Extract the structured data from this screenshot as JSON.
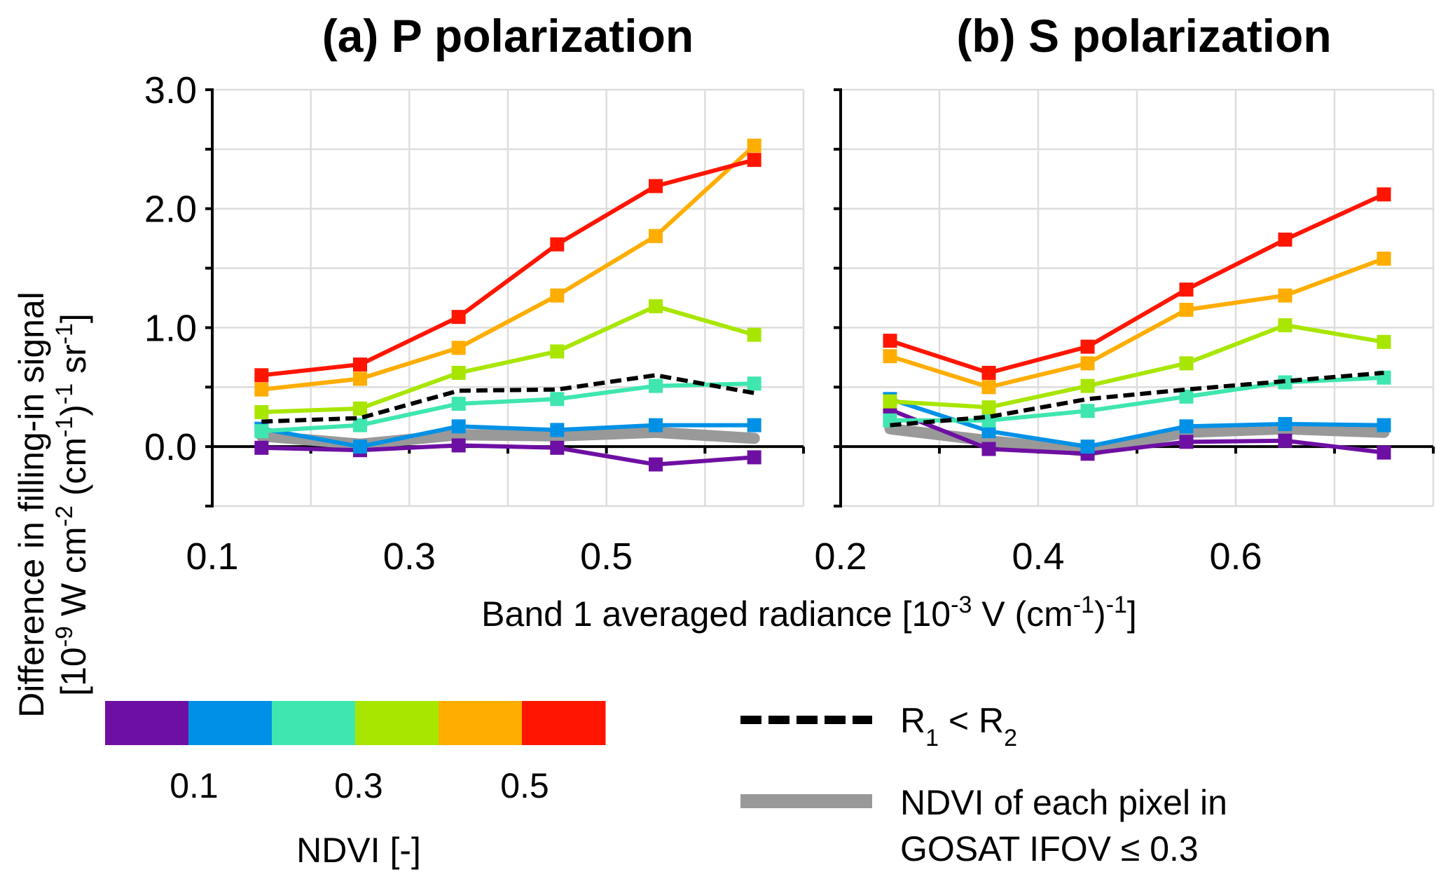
{
  "chart_data": [
    {
      "type": "line",
      "panel": "a",
      "title": "(a) P polarization",
      "xlabel": "Band 1 averaged radiance [10^-3 V (cm^-1)^-1]",
      "ylabel": "Difference in filling-in signal [10^-9 W cm^-2 (cm^-1)^-1 sr^-1]",
      "xlim": [
        0.1,
        0.7
      ],
      "ylim": [
        -0.5,
        3.0
      ],
      "xticks": [
        0.1,
        0.2,
        0.3,
        0.4,
        0.5,
        0.6,
        0.7
      ],
      "xtick_labels": [
        "0.1",
        "",
        "0.3",
        "",
        "0.5",
        "",
        ""
      ],
      "yticks": [
        -0.5,
        0.0,
        0.5,
        1.0,
        1.5,
        2.0,
        2.5,
        3.0
      ],
      "ytick_labels": [
        "",
        "0.0",
        "",
        "1.0",
        "",
        "2.0",
        "",
        "3.0"
      ],
      "grid": true,
      "x": [
        0.15,
        0.25,
        0.35,
        0.45,
        0.55,
        0.65
      ],
      "series": [
        {
          "name": "NDVI 0.0-0.1",
          "color": "#6E0FA3",
          "style": "solid-marker",
          "values": [
            -0.01,
            -0.03,
            0.01,
            -0.01,
            -0.15,
            -0.09
          ]
        },
        {
          "name": "NDVI 0.1-0.2",
          "color": "#0091E6",
          "style": "solid-marker",
          "values": [
            0.15,
            0.0,
            0.17,
            0.14,
            0.18,
            0.18
          ]
        },
        {
          "name": "NDVI 0.2-0.3",
          "color": "#3FE6B0",
          "style": "solid-marker",
          "values": [
            0.13,
            0.18,
            0.36,
            0.4,
            0.51,
            0.53
          ]
        },
        {
          "name": "NDVI 0.3-0.4",
          "color": "#A8E600",
          "style": "solid-marker",
          "values": [
            0.29,
            0.32,
            0.62,
            0.8,
            1.18,
            0.94
          ]
        },
        {
          "name": "NDVI 0.4-0.5",
          "color": "#FFAD00",
          "style": "solid-marker",
          "values": [
            0.48,
            0.57,
            0.83,
            1.27,
            1.77,
            2.53
          ]
        },
        {
          "name": "NDVI 0.5-0.6",
          "color": "#FF1500",
          "style": "solid-marker",
          "values": [
            0.6,
            0.69,
            1.09,
            1.7,
            2.19,
            2.41
          ]
        },
        {
          "name": "NDVI of each pixel in GOSAT IFOV ≤ 0.3",
          "color": "#999999",
          "style": "thick-gray",
          "values": [
            0.09,
            0.02,
            0.1,
            0.09,
            0.12,
            0.07
          ]
        },
        {
          "name": "R1 < R2",
          "color": "#000000",
          "style": "dashed",
          "values": [
            0.21,
            0.24,
            0.47,
            0.48,
            0.6,
            0.45
          ]
        }
      ]
    },
    {
      "type": "line",
      "panel": "b",
      "title": "(b) S polarization",
      "xlabel": "Band 1 averaged radiance [10^-3 V (cm^-1)^-1]",
      "xlim": [
        0.2,
        0.8
      ],
      "ylim": [
        -0.5,
        3.0
      ],
      "xticks": [
        0.2,
        0.3,
        0.4,
        0.5,
        0.6,
        0.7,
        0.8
      ],
      "xtick_labels": [
        "0.2",
        "",
        "0.4",
        "",
        "0.6",
        "",
        ""
      ],
      "yticks": [
        -0.5,
        0.0,
        0.5,
        1.0,
        1.5,
        2.0,
        2.5,
        3.0
      ],
      "grid": true,
      "x": [
        0.25,
        0.35,
        0.45,
        0.55,
        0.65,
        0.75
      ],
      "series": [
        {
          "name": "NDVI 0.0-0.1",
          "color": "#6E0FA3",
          "style": "solid-marker",
          "values": [
            0.31,
            -0.02,
            -0.06,
            0.04,
            0.05,
            -0.05
          ]
        },
        {
          "name": "NDVI 0.1-0.2",
          "color": "#0091E6",
          "style": "solid-marker",
          "values": [
            0.4,
            0.13,
            0.0,
            0.17,
            0.19,
            0.18
          ]
        },
        {
          "name": "NDVI 0.2-0.3",
          "color": "#3FE6B0",
          "style": "solid-marker",
          "values": [
            0.22,
            0.22,
            0.3,
            0.42,
            0.54,
            0.58
          ]
        },
        {
          "name": "NDVI 0.3-0.4",
          "color": "#A8E600",
          "style": "solid-marker",
          "values": [
            0.38,
            0.33,
            0.51,
            0.7,
            1.02,
            0.88
          ]
        },
        {
          "name": "NDVI 0.4-0.5",
          "color": "#FFAD00",
          "style": "solid-marker",
          "values": [
            0.76,
            0.5,
            0.7,
            1.15,
            1.27,
            1.58
          ]
        },
        {
          "name": "NDVI 0.5-0.6",
          "color": "#FF1500",
          "style": "solid-marker",
          "values": [
            0.89,
            0.62,
            0.84,
            1.32,
            1.74,
            2.12
          ]
        },
        {
          "name": "NDVI of each pixel in GOSAT IFOV ≤ 0.3",
          "color": "#999999",
          "style": "thick-gray",
          "values": [
            0.15,
            0.05,
            -0.04,
            0.12,
            0.15,
            0.12
          ]
        },
        {
          "name": "R1 < R2",
          "color": "#000000",
          "style": "dashed",
          "values": [
            0.18,
            0.25,
            0.4,
            0.48,
            0.55,
            0.62
          ]
        }
      ]
    }
  ],
  "labels": {
    "title_a": "(a) P polarization",
    "title_b": "(b) S polarization",
    "ylabel_line1": "Difference in filling-in signal",
    "ylabel_line2_parts": [
      "[10",
      "-9",
      " W cm",
      "-2",
      " (cm",
      "-1",
      ")",
      "-1",
      " sr",
      "-1",
      "]"
    ],
    "xlabel_parts": [
      "Band 1 averaged radiance [10",
      "-3",
      " V (cm",
      "-1",
      ")",
      "-1",
      "]"
    ]
  },
  "legend": {
    "colorbar": {
      "colors": [
        "#6E0FA3",
        "#0091E6",
        "#3FE6B0",
        "#A8E600",
        "#FFAD00",
        "#FF1500"
      ],
      "tick_labels": [
        "0.1",
        "0.3",
        "0.5"
      ],
      "title": "NDVI [-]"
    },
    "dashed_label": {
      "r": "R",
      "sub1": "1",
      "lt": " < R",
      "sub2": "2"
    },
    "gray_label_line1": "NDVI of each pixel in",
    "gray_label_line2": "GOSAT IFOV ≤ 0.3"
  }
}
